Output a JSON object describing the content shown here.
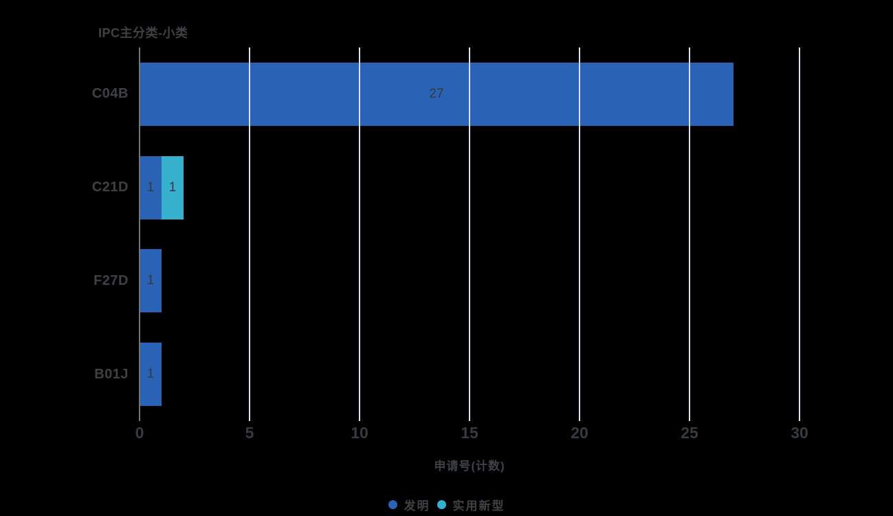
{
  "chart_data": {
    "type": "bar",
    "orientation": "horizontal",
    "title": "IPC主分类-小类",
    "xlabel": "申请号(计数)",
    "categories": [
      "C04B",
      "C21D",
      "F27D",
      "B01J"
    ],
    "series": [
      {
        "name": "发明",
        "color": "#2a63b6",
        "values": [
          27,
          1,
          1,
          1
        ]
      },
      {
        "name": "实用新型",
        "color": "#36b0cd",
        "values": [
          0,
          1,
          0,
          0
        ]
      }
    ],
    "stacked": true,
    "x_ticks": [
      0,
      5,
      10,
      15,
      20,
      25,
      30
    ],
    "xlim": [
      0,
      30
    ],
    "grid": true,
    "legend_position": "bottom",
    "value_labels_inside": true
  },
  "colors": {
    "background": "#000000",
    "gridline": "#dce4f1",
    "zero_axis_line": "#757575",
    "text": "#3e4247",
    "value_label": "#35383d",
    "series_invention": "#2a63b6",
    "series_utility_model": "#36b0cd"
  }
}
